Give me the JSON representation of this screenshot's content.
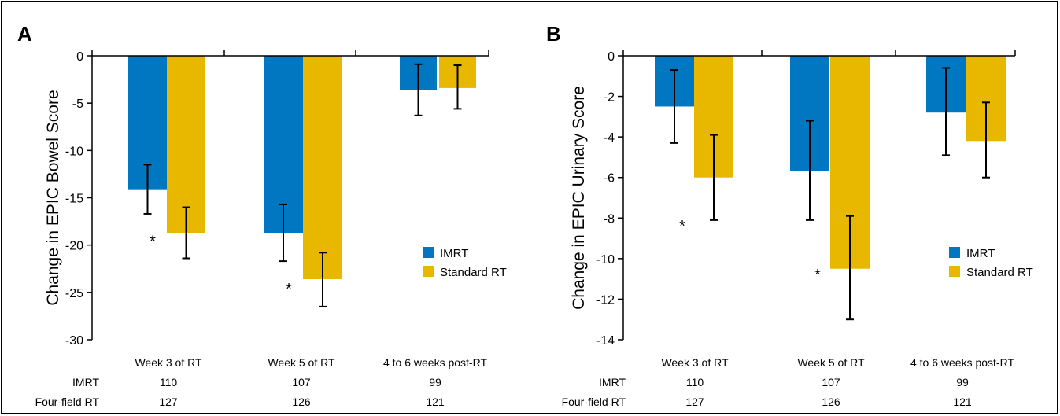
{
  "colors": {
    "imrt": "#0077c0",
    "standard": "#e8b800",
    "axis": "#000000"
  },
  "chart_data": [
    {
      "type": "bar",
      "panel": "A",
      "ylabel": "Change in EPIC Bowel Score",
      "ylim": [
        -30,
        0
      ],
      "yticks": [
        0,
        -5,
        -10,
        -15,
        -20,
        -25,
        -30
      ],
      "grid": false,
      "legend_position": "right",
      "categories": [
        "Week 3 of RT",
        "Week 5 of RT",
        "4 to 6 weeks post-RT"
      ],
      "series": [
        {
          "name": "IMRT",
          "values": [
            -14.1,
            -18.7,
            -3.6
          ],
          "error_low": [
            -16.7,
            -21.7,
            -6.3
          ],
          "error_high": [
            -11.5,
            -15.7,
            -0.9
          ]
        },
        {
          "name": "Standard RT",
          "values": [
            -18.7,
            -23.6,
            -3.4
          ],
          "error_low": [
            -21.4,
            -26.5,
            -5.6
          ],
          "error_high": [
            -16.0,
            -20.8,
            -1.0
          ]
        }
      ],
      "significance_markers": [
        {
          "category_index": 0,
          "symbol": "*",
          "value": -19.0
        },
        {
          "category_index": 1,
          "symbol": "*",
          "value": -24.0
        }
      ],
      "counts": [
        {
          "label": "IMRT",
          "values": [
            "110",
            "107",
            "99"
          ]
        },
        {
          "label": "Four-field RT",
          "values": [
            "127",
            "126",
            "121"
          ]
        }
      ]
    },
    {
      "type": "bar",
      "panel": "B",
      "ylabel": "Change in EPIC Urinary Score",
      "ylim": [
        -14,
        0
      ],
      "yticks": [
        0,
        -2,
        -4,
        -6,
        -8,
        -10,
        -12,
        -14
      ],
      "grid": false,
      "legend_position": "right",
      "categories": [
        "Week 3 of RT",
        "Week 5 of RT",
        "4 to 6 weeks post-RT"
      ],
      "series": [
        {
          "name": "IMRT",
          "values": [
            -2.5,
            -5.7,
            -2.8
          ],
          "error_low": [
            -4.3,
            -8.1,
            -4.9
          ],
          "error_high": [
            -0.7,
            -3.2,
            -0.6
          ]
        },
        {
          "name": "Standard RT",
          "values": [
            -6.0,
            -10.5,
            -4.2
          ],
          "error_low": [
            -8.1,
            -13.0,
            -6.0
          ],
          "error_high": [
            -3.9,
            -7.9,
            -2.3
          ]
        }
      ],
      "significance_markers": [
        {
          "category_index": 0,
          "symbol": "*",
          "value": -8.1
        },
        {
          "category_index": 1,
          "symbol": "*",
          "value": -10.5
        }
      ],
      "counts": [
        {
          "label": "IMRT",
          "values": [
            "110",
            "107",
            "99"
          ]
        },
        {
          "label": "Four-field RT",
          "values": [
            "127",
            "126",
            "121"
          ]
        }
      ]
    }
  ]
}
